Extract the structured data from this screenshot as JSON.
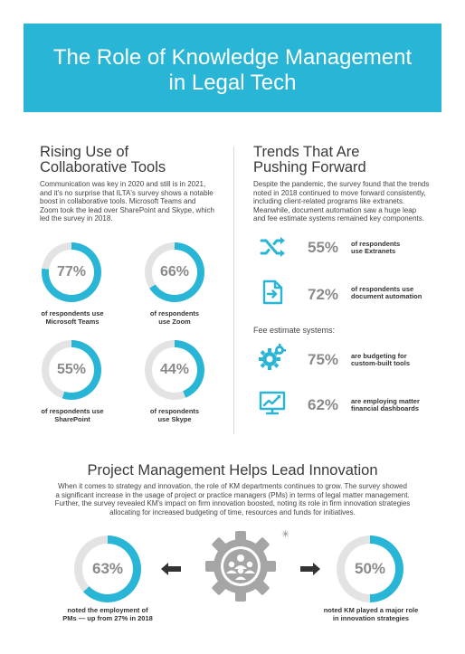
{
  "header": {
    "title_line1": "The Role of Knowledge Management",
    "title_line2": "in Legal Tech"
  },
  "left": {
    "heading_line1": "Rising Use of",
    "heading_line2": "Collaborative Tools",
    "paragraph": [
      "Communication was key in 2020 and still is in 2021,",
      "and it's no surprise that ILTA's survey shows a notable",
      "boost in collaborative tools. Microsoft Teams and",
      "Zoom took the lead over SharePoint and Skype, which",
      "led the survey in 2018."
    ],
    "stats": [
      {
        "pct": "77%",
        "value": 77,
        "label1": "of respondents use",
        "label2": "Microsoft Teams"
      },
      {
        "pct": "66%",
        "value": 66,
        "label1": "of respondents",
        "label2": "use Zoom"
      },
      {
        "pct": "55%",
        "value": 55,
        "label1": "of respondents use",
        "label2": "SharePoint"
      },
      {
        "pct": "44%",
        "value": 44,
        "label1": "of respondents",
        "label2": "use Skype"
      }
    ]
  },
  "right": {
    "heading_line1": "Trends That Are",
    "heading_line2": "Pushing Forward",
    "paragraph": [
      "Despite the pandemic, the survey found that the trends",
      "noted in 2018 continued to move forward consistently,",
      "including client-related programs like extranets.",
      "Meanwhile, document automation saw a huge leap",
      "and fee estimate systems remained key components."
    ],
    "trends": [
      {
        "icon": "shuffle-icon",
        "pct": "55%",
        "text1": "of respondents",
        "text2": "use Extranets"
      },
      {
        "icon": "document-arrow-icon",
        "pct": "72%",
        "text1": "of respondents use",
        "text2": "document automation"
      }
    ],
    "fee_label": "Fee estimate systems:",
    "fees": [
      {
        "icon": "gears-icon",
        "pct": "75%",
        "text1": "are budgeting for",
        "text2": "custom-built tools"
      },
      {
        "icon": "dashboard-monitor-icon",
        "pct": "62%",
        "text1": "are employing matter",
        "text2": "financial dashboards"
      }
    ]
  },
  "pm": {
    "heading": "Project Management Helps Lead Innovation",
    "paragraph": [
      "When it comes to strategy and innovation, the role of KM departments continues to grow. The survey showed",
      "a significant increase in the usage of project or practice managers (PMs) in terms of legal matter management.",
      "Further, the survey revealed KM's impact on firm innovation boosted, noting its role in firm innovation strategies",
      "allocating for increased budgeting of time, resources and funds for initiatives."
    ],
    "stat_left": {
      "pct": "63%",
      "value": 63,
      "label1": "noted the employment of",
      "label2": "PMs — up from 27% in 2018"
    },
    "stat_right": {
      "pct": "50%",
      "value": 50,
      "label1": "noted KM played a major role",
      "label2": "in innovation strategies"
    }
  },
  "colors": {
    "accent": "#29b5d6",
    "ring_track": "#e3e3e3",
    "pct_text": "#8a8a8a"
  }
}
